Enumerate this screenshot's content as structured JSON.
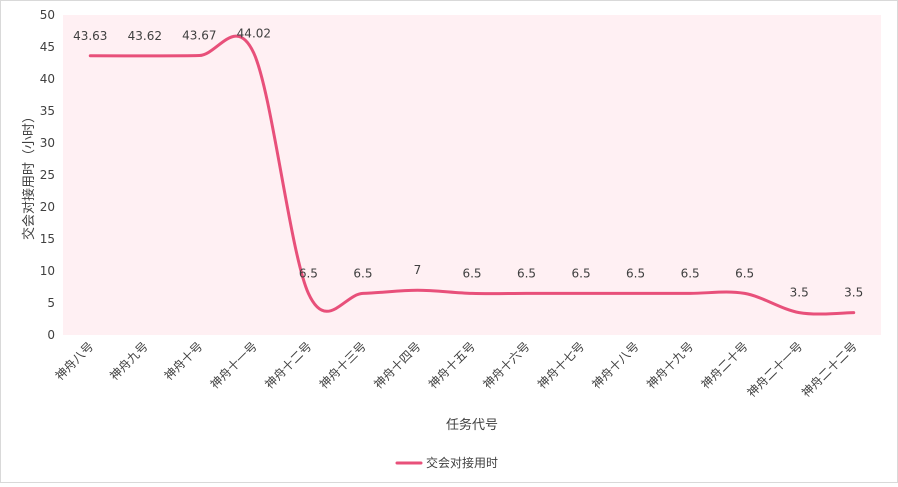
{
  "chart_data": {
    "type": "line",
    "title": "",
    "xlabel": "任务代号",
    "ylabel": "交会对接用时（小时）",
    "ylim": [
      0,
      50
    ],
    "yticks": [
      0,
      5,
      10,
      15,
      20,
      25,
      30,
      35,
      40,
      45,
      50
    ],
    "grid": false,
    "legend_position": "bottom",
    "categories": [
      "神舟八号",
      "神舟九号",
      "神舟十号",
      "神舟十一号",
      "神舟十二号",
      "神舟十三号",
      "神舟十四号",
      "神舟十五号",
      "神舟十六号",
      "神舟十七号",
      "神舟十八号",
      "神舟十九号",
      "神舟二十号",
      "神舟二十一号",
      "神舟二十二号"
    ],
    "series": [
      {
        "name": "交会对接用时",
        "color": "#e8507a",
        "values": [
          43.63,
          43.62,
          43.67,
          44.02,
          6.5,
          6.5,
          7,
          6.5,
          6.5,
          6.5,
          6.5,
          6.5,
          6.5,
          3.5,
          3.5
        ],
        "labels": [
          "43.63",
          "43.62",
          "43.67",
          "44.02",
          "6.5",
          "6.5",
          "7",
          "6.5",
          "6.5",
          "6.5",
          "6.5",
          "6.5",
          "6.5",
          "3.5",
          "3.5"
        ]
      }
    ],
    "plot_background": "#fff0f3"
  }
}
